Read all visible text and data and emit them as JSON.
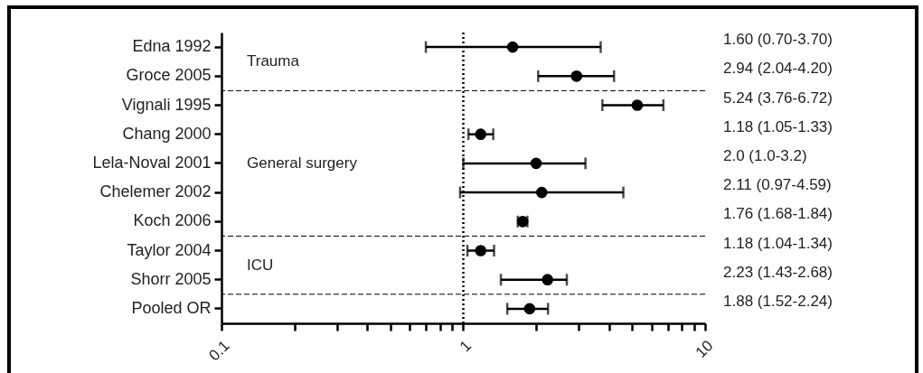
{
  "chart_data": {
    "type": "scatter",
    "orientation": "horizontal",
    "categories": [
      "Edna 1992",
      "Groce 2005",
      "Vignali 1995",
      "Chang 2000",
      "Lela-Noval 2001",
      "Chelemer 2002",
      "Koch 2006",
      "Taylor 2004",
      "Shorr 2005",
      "Pooled OR"
    ],
    "series": [
      {
        "color": "#000000",
        "values": [
          1.6,
          2.94,
          5.24,
          1.18,
          2.0,
          2.11,
          1.76,
          1.18,
          2.23,
          1.88
        ],
        "errors": [
          [
            0.7,
            3.7
          ],
          [
            2.04,
            4.2
          ],
          [
            3.76,
            6.72
          ],
          [
            1.05,
            1.33
          ],
          [
            1.0,
            3.2
          ],
          [
            0.97,
            4.59
          ],
          [
            1.68,
            1.84
          ],
          [
            1.04,
            1.34
          ],
          [
            1.43,
            2.68
          ],
          [
            1.52,
            2.24
          ]
        ]
      }
    ],
    "log": "x",
    "xlim": [
      0.1,
      10
    ],
    "xticks": [
      0.1,
      {
        "value": 0.2,
        "label": null
      },
      {
        "value": 0.3,
        "label": null
      },
      {
        "value": 0.4,
        "label": null
      },
      {
        "value": 0.5,
        "label": null
      },
      {
        "value": 0.6,
        "label": null
      },
      {
        "value": 0.7,
        "label": null
      },
      {
        "value": 0.8,
        "label": null
      },
      {
        "value": 0.9,
        "label": null
      },
      1,
      {
        "value": 2,
        "label": null
      },
      {
        "value": 3,
        "label": null
      },
      {
        "value": 4,
        "label": null
      },
      {
        "value": 5,
        "label": null
      },
      {
        "value": 6,
        "label": null
      },
      {
        "value": 7,
        "label": null
      },
      {
        "value": 8,
        "label": null
      },
      {
        "value": 9,
        "label": null
      },
      10
    ],
    "ref_lines": [
      {
        "axis": "x",
        "value": 1,
        "line_style": "dotted",
        "color": "#000000"
      },
      {
        "axis": "y",
        "value": "Groce 2005",
        "line_style": "dashed",
        "color": "#000000"
      },
      {
        "axis": "y",
        "value": "Koch 2006",
        "line_style": "dashed",
        "color": "#000000"
      },
      {
        "axis": "y",
        "value": "Shorr 2005",
        "line_style": "dashed",
        "color": "#000000"
      }
    ],
    "annotations": [
      "Trauma",
      "General  surgery",
      "ICU",
      "1.60 (0.70-3.70)",
      "2.94 (2.04-4.20)",
      "5.24 (3.76-6.72)",
      "1.18 (1.05-1.33)",
      "2.0 (1.0-3.2)",
      "2.11 (0.97-4.59)",
      "1.76 (1.68-1.84)",
      "1.18 (1.04-1.34)",
      "2.23 (1.43-2.68)",
      "1.88 (1.52-2.24)"
    ],
    "marker": "circle",
    "grid": false
  }
}
